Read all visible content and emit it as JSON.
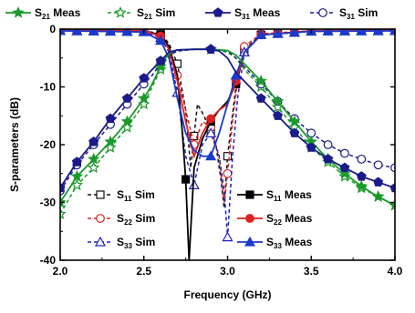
{
  "chart_data": {
    "type": "line",
    "xlabel": "Frequency (GHz)",
    "ylabel": "S-parameters (dB)",
    "xlim": [
      2.0,
      4.0
    ],
    "ylim": [
      -40,
      0
    ],
    "xticks": [
      2.0,
      2.5,
      3.0,
      3.5,
      4.0
    ],
    "xtick_labels": [
      "2.0",
      "2.5",
      "3.0",
      "3.5",
      "4.0"
    ],
    "yticks": [
      0,
      -10,
      -20,
      -30,
      -40
    ],
    "ytick_labels": [
      "0",
      "-10",
      "-20",
      "-30",
      "-40"
    ],
    "grid": false,
    "legend_top": [
      {
        "series": "s21meas",
        "prefix": "S",
        "sub": "21",
        "suffix": " Meas"
      },
      {
        "series": "s21sim",
        "prefix": "S",
        "sub": "21",
        "suffix": " Sim"
      },
      {
        "series": "s31meas",
        "prefix": "S",
        "sub": "31",
        "suffix": " Meas"
      },
      {
        "series": "s31sim",
        "prefix": "S",
        "sub": "31",
        "suffix": " Sim"
      }
    ],
    "legend_left": [
      {
        "series": "s11sim",
        "prefix": "S",
        "sub": "11",
        "suffix": " Sim"
      },
      {
        "series": "s22sim",
        "prefix": "S",
        "sub": "22",
        "suffix": " Sim"
      },
      {
        "series": "s33sim",
        "prefix": "S",
        "sub": "33",
        "suffix": " Sim"
      }
    ],
    "legend_right": [
      {
        "series": "s11meas",
        "prefix": "S",
        "sub": "11",
        "suffix": " Meas"
      },
      {
        "series": "s22meas",
        "prefix": "S",
        "sub": "22",
        "suffix": " Meas"
      },
      {
        "series": "s33meas",
        "prefix": "S",
        "sub": "33",
        "suffix": " Meas"
      }
    ],
    "series": [
      {
        "id": "s21meas",
        "color": "#1a9a2a",
        "dash": "",
        "marker": "star",
        "filled": true,
        "x": [
          2.0,
          2.1,
          2.2,
          2.3,
          2.4,
          2.5,
          2.55,
          2.6,
          2.63,
          2.66,
          2.7,
          2.8,
          2.9,
          3.0,
          3.05,
          3.1,
          3.15,
          3.2,
          3.3,
          3.4,
          3.5,
          3.6,
          3.7,
          3.8,
          3.9,
          4.0
        ],
        "y": [
          -30.0,
          -25.5,
          -22.5,
          -19.5,
          -16.0,
          -12.0,
          -9.5,
          -6.5,
          -5.0,
          -4.0,
          -3.6,
          -3.5,
          -3.5,
          -3.7,
          -4.5,
          -6.0,
          -7.5,
          -9.0,
          -12.5,
          -16.0,
          -19.5,
          -22.5,
          -25.0,
          -27.2,
          -29.0,
          -30.5
        ],
        "mx": [
          2.0,
          2.1,
          2.2,
          2.3,
          2.4,
          2.5,
          2.6,
          2.9,
          3.2,
          3.3,
          3.4,
          3.5,
          3.6,
          3.7,
          3.8,
          3.9,
          4.0
        ]
      },
      {
        "id": "s21sim",
        "color": "#1a9a2a",
        "dash": "4,3",
        "marker": "star",
        "filled": false,
        "x": [
          2.0,
          2.1,
          2.2,
          2.3,
          2.4,
          2.5,
          2.55,
          2.6,
          2.65,
          2.7,
          2.8,
          2.9,
          3.0,
          3.05,
          3.1,
          3.15,
          3.2,
          3.3,
          3.4,
          3.5,
          3.6,
          3.7,
          3.8,
          3.9,
          4.0
        ],
        "y": [
          -32.0,
          -27.0,
          -24.0,
          -20.5,
          -17.0,
          -13.0,
          -10.0,
          -7.0,
          -4.5,
          -3.8,
          -3.5,
          -3.5,
          -4.0,
          -5.0,
          -7.0,
          -8.5,
          -10.0,
          -13.5,
          -17.0,
          -20.5,
          -23.0,
          -25.5,
          -27.5,
          -29.0,
          -30.5
        ],
        "mx": [
          2.0,
          2.1,
          2.2,
          2.3,
          2.4,
          2.5,
          2.6,
          3.2,
          3.3,
          3.4,
          3.5,
          3.6,
          3.7,
          3.8,
          3.9,
          4.0
        ]
      },
      {
        "id": "s31meas",
        "color": "#1a1a8c",
        "dash": "",
        "marker": "pentagon",
        "filled": true,
        "x": [
          2.0,
          2.1,
          2.2,
          2.3,
          2.4,
          2.5,
          2.55,
          2.6,
          2.65,
          2.7,
          2.8,
          2.9,
          2.95,
          3.0,
          3.05,
          3.1,
          3.15,
          3.2,
          3.3,
          3.4,
          3.5,
          3.6,
          3.7,
          3.8,
          3.9,
          4.0
        ],
        "y": [
          -27.5,
          -23.0,
          -19.5,
          -15.5,
          -12.0,
          -8.5,
          -7.0,
          -5.5,
          -4.0,
          -3.6,
          -3.5,
          -3.5,
          -3.8,
          -5.0,
          -7.5,
          -9.0,
          -10.5,
          -12.0,
          -15.0,
          -18.0,
          -20.5,
          -22.5,
          -24.0,
          -25.5,
          -26.5,
          -27.5
        ],
        "mx": [
          2.0,
          2.1,
          2.2,
          2.3,
          2.4,
          2.5,
          2.6,
          2.9,
          3.2,
          3.3,
          3.4,
          3.5,
          3.6,
          3.7,
          3.8,
          3.9,
          4.0
        ]
      },
      {
        "id": "s31sim",
        "color": "#1a1a8c",
        "dash": "4,3",
        "marker": "circle",
        "filled": false,
        "x": [
          2.0,
          2.1,
          2.2,
          2.3,
          2.4,
          2.5,
          2.55,
          2.6,
          2.65,
          2.7,
          2.8,
          2.9,
          3.0,
          3.05,
          3.1,
          3.15,
          3.2,
          3.3,
          3.4,
          3.5,
          3.6,
          3.7,
          3.8,
          3.9,
          4.0
        ],
        "y": [
          -28.0,
          -23.5,
          -20.0,
          -16.5,
          -13.0,
          -9.5,
          -8.0,
          -6.0,
          -4.5,
          -3.8,
          -3.5,
          -3.5,
          -3.8,
          -5.0,
          -6.5,
          -8.0,
          -9.5,
          -12.5,
          -15.5,
          -18.0,
          -20.0,
          -21.5,
          -22.5,
          -23.5,
          -24.0
        ],
        "mx": [
          2.0,
          2.1,
          2.2,
          2.3,
          2.4,
          2.5,
          2.6,
          2.9,
          3.2,
          3.3,
          3.4,
          3.5,
          3.6,
          3.7,
          3.8,
          3.9,
          4.0
        ]
      },
      {
        "id": "s11sim",
        "color": "#111111",
        "dash": "4,3",
        "marker": "square",
        "filled": false,
        "x": [
          2.0,
          2.5,
          2.6,
          2.65,
          2.7,
          2.75,
          2.78,
          2.82,
          2.86,
          2.9,
          2.93,
          2.96,
          2.98,
          3.0,
          3.02,
          3.05,
          3.1,
          3.2,
          3.5,
          4.0
        ],
        "y": [
          -0.2,
          -0.3,
          -0.8,
          -2.5,
          -6.0,
          -14.0,
          -24.0,
          -13.0,
          -15.0,
          -18.0,
          -20.0,
          -26.0,
          -31.0,
          -22.0,
          -17.0,
          -10.0,
          -3.5,
          -1.0,
          -0.3,
          -0.2
        ],
        "mx": [
          2.0,
          2.1,
          2.2,
          2.3,
          2.4,
          2.5,
          2.6,
          2.7,
          2.8,
          2.9,
          3.0,
          3.1,
          3.2,
          3.3,
          3.4,
          3.5,
          3.6,
          3.7,
          3.8,
          3.9,
          4.0
        ]
      },
      {
        "id": "s22sim",
        "color": "#e02020",
        "dash": "4,3",
        "marker": "circle",
        "filled": false,
        "x": [
          2.0,
          2.5,
          2.6,
          2.65,
          2.7,
          2.75,
          2.8,
          2.85,
          2.9,
          2.95,
          2.98,
          3.0,
          3.03,
          3.06,
          3.1,
          3.2,
          3.5,
          4.0
        ],
        "y": [
          -0.2,
          -0.3,
          -1.0,
          -3.0,
          -8.0,
          -14.0,
          -20.0,
          -16.0,
          -17.0,
          -22.0,
          -30.0,
          -25.0,
          -16.0,
          -9.0,
          -3.0,
          -0.8,
          -0.3,
          -0.2
        ],
        "mx": [
          2.0,
          2.1,
          2.2,
          2.3,
          2.4,
          2.5,
          2.6,
          2.7,
          2.8,
          2.9,
          3.0,
          3.1,
          3.2,
          3.3,
          3.4,
          3.5,
          3.6,
          3.7,
          3.8,
          3.9,
          4.0
        ]
      },
      {
        "id": "s33sim",
        "color": "#2020c0",
        "dash": "4,3",
        "marker": "triangle",
        "filled": false,
        "x": [
          2.0,
          2.5,
          2.6,
          2.65,
          2.7,
          2.75,
          2.8,
          2.85,
          2.9,
          2.95,
          2.98,
          3.0,
          3.03,
          3.06,
          3.1,
          3.2,
          3.5,
          4.0
        ],
        "y": [
          -0.3,
          -0.4,
          -1.5,
          -4.0,
          -11.0,
          -22.0,
          -27.0,
          -20.0,
          -18.0,
          -22.0,
          -28.0,
          -36.0,
          -22.0,
          -12.0,
          -4.0,
          -1.0,
          -0.4,
          -0.3
        ],
        "mx": [
          2.0,
          2.1,
          2.2,
          2.3,
          2.4,
          2.5,
          2.6,
          2.7,
          2.8,
          2.9,
          3.0,
          3.1,
          3.2,
          3.3,
          3.4,
          3.5,
          3.6,
          3.7,
          3.8,
          3.9,
          4.0
        ]
      },
      {
        "id": "s11meas",
        "color": "#000000",
        "dash": "",
        "marker": "square",
        "filled": true,
        "x": [
          2.0,
          2.5,
          2.6,
          2.65,
          2.7,
          2.73,
          2.75,
          2.77,
          2.8,
          2.85,
          2.9,
          2.95,
          3.0,
          3.05,
          3.1,
          3.2,
          3.5,
          4.0
        ],
        "y": [
          -0.2,
          -0.3,
          -1.0,
          -3.0,
          -8.0,
          -18.0,
          -26.0,
          -40.0,
          -24.0,
          -19.0,
          -16.0,
          -14.0,
          -12.5,
          -9.5,
          -4.0,
          -1.0,
          -0.3,
          -0.2
        ],
        "mx": [
          2.0,
          2.1,
          2.2,
          2.3,
          2.4,
          2.5,
          2.6,
          2.75,
          2.9,
          3.05,
          3.2,
          3.3,
          3.4,
          3.5,
          3.6,
          3.7,
          3.8,
          3.9,
          4.0
        ]
      },
      {
        "id": "s22meas",
        "color": "#e02020",
        "dash": "",
        "marker": "circle",
        "filled": true,
        "x": [
          2.0,
          2.5,
          2.6,
          2.65,
          2.7,
          2.75,
          2.8,
          2.85,
          2.9,
          2.95,
          3.0,
          3.05,
          3.1,
          3.2,
          3.5,
          4.0
        ],
        "y": [
          -0.2,
          -0.3,
          -1.2,
          -3.5,
          -9.0,
          -16.0,
          -22.0,
          -18.0,
          -15.5,
          -14.0,
          -13.0,
          -9.0,
          -4.0,
          -1.0,
          -0.3,
          -0.2
        ],
        "mx": [
          2.0,
          2.1,
          2.2,
          2.3,
          2.4,
          2.5,
          2.6,
          2.9,
          3.05,
          3.2,
          3.3,
          3.4,
          3.5,
          3.6,
          3.7,
          3.8,
          3.9,
          4.0
        ]
      },
      {
        "id": "s33meas",
        "color": "#1a3acc",
        "dash": "",
        "marker": "triangle",
        "filled": true,
        "x": [
          2.0,
          2.5,
          2.6,
          2.65,
          2.7,
          2.75,
          2.8,
          2.85,
          2.9,
          2.95,
          3.0,
          3.05,
          3.1,
          3.2,
          3.5,
          4.0
        ],
        "y": [
          -0.3,
          -0.5,
          -2.0,
          -5.0,
          -12.0,
          -18.0,
          -21.0,
          -22.0,
          -22.0,
          -18.0,
          -13.0,
          -8.0,
          -4.0,
          -1.0,
          -0.4,
          -0.3
        ],
        "mx": [
          2.0,
          2.1,
          2.2,
          2.3,
          2.4,
          2.5,
          2.6,
          2.9,
          3.05,
          3.2,
          3.3,
          3.4,
          3.5,
          3.6,
          3.7,
          3.8,
          3.9,
          4.0
        ]
      }
    ]
  }
}
